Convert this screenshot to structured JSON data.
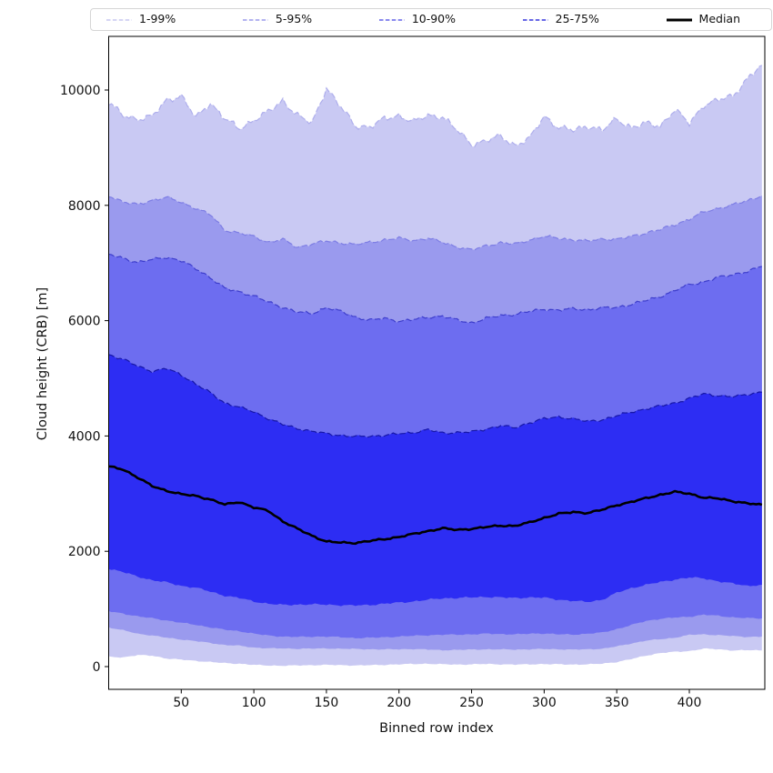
{
  "figure": {
    "background": "#ffffff",
    "axes_box_color": "#000000"
  },
  "legend": {
    "position": "top-outside",
    "items": [
      {
        "name": "band-1-99",
        "label": "1-99%",
        "line_color": "#c7c7f1",
        "style": "dashed"
      },
      {
        "name": "band-5-95",
        "label": "5-95%",
        "line_color": "#9a9aec",
        "style": "dashed"
      },
      {
        "name": "band-10-90",
        "label": "10-90%",
        "line_color": "#6464e9",
        "style": "dashed"
      },
      {
        "name": "band-25-75",
        "label": "25-75%",
        "line_color": "#3737dd",
        "style": "dashed"
      },
      {
        "name": "median",
        "label": "Median",
        "line_color": "#000000",
        "style": "solid"
      }
    ]
  },
  "chart_data": {
    "type": "area",
    "title": "",
    "xlabel": "Binned row index",
    "ylabel": "Cloud height (CRB) [m]",
    "xlim": [
      0,
      452
    ],
    "ylim": [
      -394,
      10930
    ],
    "xticks": [
      50,
      100,
      150,
      200,
      250,
      300,
      350,
      400
    ],
    "yticks": [
      0,
      2000,
      4000,
      6000,
      8000,
      10000
    ],
    "grid": false,
    "legend_position": "top",
    "x": [
      0,
      10,
      20,
      30,
      40,
      50,
      60,
      70,
      80,
      90,
      100,
      110,
      120,
      130,
      140,
      150,
      160,
      170,
      180,
      190,
      200,
      210,
      220,
      230,
      240,
      250,
      260,
      270,
      280,
      290,
      300,
      310,
      320,
      330,
      340,
      350,
      360,
      370,
      380,
      390,
      400,
      410,
      420,
      430,
      440,
      450
    ],
    "series": [
      {
        "name": "p99",
        "percentile": 99,
        "texture": 70,
        "values": [
          9780,
          9560,
          9500,
          9540,
          9830,
          9900,
          9520,
          9780,
          9500,
          9330,
          9480,
          9620,
          9820,
          9560,
          9420,
          10040,
          9700,
          9380,
          9360,
          9500,
          9560,
          9450,
          9560,
          9540,
          9300,
          9060,
          9120,
          9200,
          9040,
          9160,
          9550,
          9350,
          9300,
          9380,
          9300,
          9500,
          9350,
          9420,
          9380,
          9660,
          9420,
          9745,
          9825,
          9900,
          10200,
          10430
        ]
      },
      {
        "name": "p95",
        "percentile": 95,
        "texture": 32,
        "values": [
          8170,
          8060,
          8010,
          8090,
          8140,
          8050,
          7950,
          7840,
          7570,
          7520,
          7460,
          7360,
          7410,
          7270,
          7330,
          7380,
          7350,
          7320,
          7360,
          7400,
          7430,
          7390,
          7430,
          7360,
          7280,
          7225,
          7300,
          7350,
          7330,
          7400,
          7460,
          7430,
          7400,
          7380,
          7420,
          7410,
          7460,
          7520,
          7580,
          7665,
          7760,
          7885,
          7950,
          8010,
          8080,
          8170
        ]
      },
      {
        "name": "p90",
        "percentile": 90,
        "texture": 32,
        "values": [
          7150,
          7080,
          7010,
          7060,
          7100,
          7040,
          6900,
          6750,
          6560,
          6500,
          6430,
          6320,
          6230,
          6150,
          6120,
          6230,
          6160,
          6060,
          6010,
          6040,
          5990,
          6020,
          6060,
          6080,
          6010,
          5960,
          6040,
          6090,
          6110,
          6160,
          6200,
          6180,
          6210,
          6190,
          6220,
          6230,
          6280,
          6350,
          6420,
          6520,
          6630,
          6670,
          6750,
          6800,
          6850,
          6940
        ]
      },
      {
        "name": "p75",
        "percentile": 75,
        "texture": 28,
        "values": [
          5410,
          5330,
          5210,
          5120,
          5170,
          5060,
          4900,
          4750,
          4570,
          4500,
          4420,
          4300,
          4200,
          4130,
          4080,
          4040,
          4010,
          3990,
          3995,
          4010,
          4040,
          4060,
          4110,
          4050,
          4060,
          4070,
          4120,
          4180,
          4140,
          4230,
          4300,
          4330,
          4300,
          4250,
          4280,
          4350,
          4415,
          4470,
          4520,
          4570,
          4650,
          4730,
          4700,
          4680,
          4720,
          4760
        ]
      },
      {
        "name": "p50",
        "percentile": 50,
        "texture": 18,
        "values": [
          3470,
          3420,
          3280,
          3130,
          3050,
          2990,
          2960,
          2900,
          2810,
          2855,
          2760,
          2700,
          2520,
          2390,
          2270,
          2170,
          2150,
          2145,
          2180,
          2210,
          2250,
          2300,
          2350,
          2400,
          2370,
          2390,
          2420,
          2445,
          2440,
          2500,
          2580,
          2650,
          2680,
          2665,
          2720,
          2800,
          2855,
          2920,
          2980,
          3030,
          3000,
          2930,
          2915,
          2870,
          2830,
          2805
        ]
      },
      {
        "name": "p25",
        "percentile": 25,
        "texture": 20,
        "values": [
          1700,
          1640,
          1560,
          1500,
          1460,
          1400,
          1370,
          1300,
          1230,
          1190,
          1130,
          1090,
          1070,
          1075,
          1080,
          1075,
          1065,
          1060,
          1070,
          1090,
          1110,
          1130,
          1160,
          1185,
          1190,
          1200,
          1210,
          1200,
          1190,
          1200,
          1195,
          1160,
          1140,
          1120,
          1160,
          1280,
          1360,
          1420,
          1465,
          1510,
          1545,
          1530,
          1480,
          1440,
          1400,
          1420
        ]
      },
      {
        "name": "p10",
        "percentile": 10,
        "texture": 14,
        "values": [
          960,
          920,
          870,
          840,
          800,
          760,
          725,
          680,
          640,
          615,
          570,
          540,
          520,
          515,
          520,
          520,
          510,
          495,
          500,
          510,
          520,
          535,
          545,
          552,
          555,
          560,
          570,
          565,
          560,
          570,
          575,
          560,
          555,
          570,
          590,
          650,
          720,
          790,
          830,
          850,
          865,
          900,
          880,
          855,
          840,
          835
        ]
      },
      {
        "name": "p5",
        "percentile": 5,
        "texture": 11,
        "values": [
          680,
          630,
          570,
          540,
          500,
          470,
          442,
          410,
          375,
          363,
          330,
          318,
          315,
          310,
          312,
          315,
          310,
          305,
          300,
          298,
          300,
          305,
          295,
          284,
          290,
          295,
          300,
          298,
          295,
          300,
          305,
          300,
          295,
          300,
          310,
          350,
          400,
          450,
          475,
          500,
          550,
          560,
          545,
          530,
          515,
          520
        ]
      },
      {
        "name": "p1",
        "percentile": 1,
        "texture": 11,
        "values": [
          170,
          160,
          200,
          190,
          140,
          120,
          100,
          80,
          60,
          50,
          30,
          20,
          15,
          20,
          25,
          30,
          25,
          20,
          25,
          30,
          40,
          45,
          50,
          40,
          35,
          40,
          45,
          40,
          35,
          40,
          45,
          40,
          35,
          40,
          50,
          80,
          130,
          190,
          235,
          255,
          270,
          310,
          300,
          280,
          285,
          280
        ]
      }
    ],
    "bands": [
      {
        "label": "1-99%",
        "upper": "p99",
        "lower": "p1",
        "fill": "#c9c9f3",
        "edge_color": "#aeaeec"
      },
      {
        "label": "5-95%",
        "upper": "p95",
        "lower": "p5",
        "fill": "#9a9aee",
        "edge_color": "#7d7de4"
      },
      {
        "label": "10-90%",
        "upper": "p90",
        "lower": "p10",
        "fill": "#6d6df0",
        "edge_color": "#3d3dcc"
      },
      {
        "label": "25-75%",
        "upper": "p75",
        "lower": "p25",
        "fill": "#2d2df3",
        "edge_color": "#1717a8"
      }
    ],
    "median": {
      "series": "p50",
      "label": "Median",
      "color": "#000000",
      "linewidth": 2.6
    }
  }
}
